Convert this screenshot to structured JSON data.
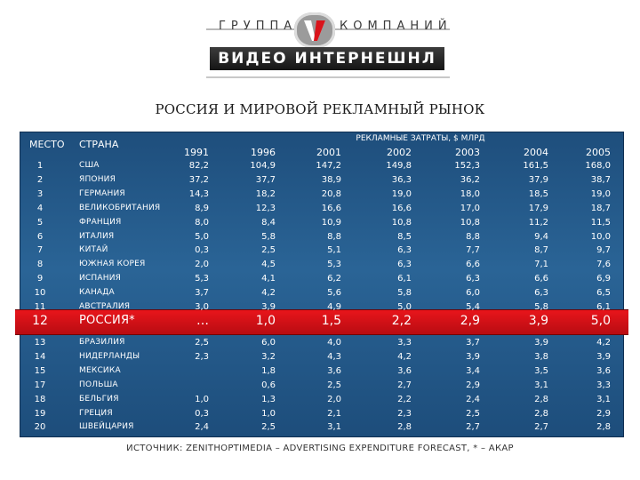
{
  "logo": {
    "left_text": "ГРУППА",
    "right_text": "КОМПАНИЙ",
    "bar_text": "ВИДЕО ИНТЕРНЕШНЛ"
  },
  "title": "РОССИЯ И МИРОВОЙ РЕКЛАМНЫЙ РЫНОК",
  "table": {
    "header_place": "МЕСТО",
    "header_country": "СТРАНА",
    "header_spend": "РЕКЛАМНЫЕ ЗАТРАТЫ, $ МЛРД",
    "years": [
      "1991",
      "1996",
      "2001",
      "2002",
      "2003",
      "2004",
      "2005"
    ],
    "rows_top": [
      {
        "place": "1",
        "country": "США",
        "values": [
          "82,2",
          "104,9",
          "147,2",
          "149,8",
          "152,3",
          "161,5",
          "168,0"
        ]
      },
      {
        "place": "2",
        "country": "ЯПОНИЯ",
        "values": [
          "37,2",
          "37,7",
          "38,9",
          "36,3",
          "36,2",
          "37,9",
          "38,7"
        ]
      },
      {
        "place": "3",
        "country": "ГЕРМАНИЯ",
        "values": [
          "14,3",
          "18,2",
          "20,8",
          "19,0",
          "18,0",
          "18,5",
          "19,0"
        ]
      },
      {
        "place": "4",
        "country": "ВЕЛИКОБРИТАНИЯ",
        "values": [
          "8,9",
          "12,3",
          "16,6",
          "16,6",
          "17,0",
          "17,9",
          "18,7"
        ]
      },
      {
        "place": "5",
        "country": "ФРАНЦИЯ",
        "values": [
          "8,0",
          "8,4",
          "10,9",
          "10,8",
          "10,8",
          "11,2",
          "11,5"
        ]
      },
      {
        "place": "6",
        "country": "ИТАЛИЯ",
        "values": [
          "5,0",
          "5,8",
          "8,8",
          "8,5",
          "8,8",
          "9,4",
          "10,0"
        ]
      },
      {
        "place": "7",
        "country": "КИТАЙ",
        "values": [
          "0,3",
          "2,5",
          "5,1",
          "6,3",
          "7,7",
          "8,7",
          "9,7"
        ]
      },
      {
        "place": "8",
        "country": "ЮЖНАЯ КОРЕЯ",
        "values": [
          "2,0",
          "4,5",
          "5,3",
          "6,3",
          "6,6",
          "7,1",
          "7,6"
        ]
      },
      {
        "place": "9",
        "country": "ИСПАНИЯ",
        "values": [
          "5,3",
          "4,1",
          "6,2",
          "6,1",
          "6,3",
          "6,6",
          "6,9"
        ]
      },
      {
        "place": "10",
        "country": "КАНАДА",
        "values": [
          "3,7",
          "4,2",
          "5,6",
          "5,8",
          "6,0",
          "6,3",
          "6,5"
        ]
      },
      {
        "place": "11",
        "country": "АВСТРАЛИЯ",
        "values": [
          "3,0",
          "3,9",
          "4,9",
          "5,0",
          "5,4",
          "5,8",
          "6,1"
        ]
      }
    ],
    "russia_row": {
      "place": "12",
      "country": "РОССИЯ*",
      "values": [
        "…",
        "1,0",
        "1,5",
        "2,2",
        "2,9",
        "3,9",
        "5,0"
      ]
    },
    "rows_bottom": [
      {
        "place": "13",
        "country": "БРАЗИЛИЯ",
        "values": [
          "2,5",
          "6,0",
          "4,0",
          "3,3",
          "3,7",
          "3,9",
          "4,2"
        ]
      },
      {
        "place": "14",
        "country": "НИДЕРЛАНДЫ",
        "values": [
          "2,3",
          "3,2",
          "4,3",
          "4,2",
          "3,9",
          "3,8",
          "3,9"
        ]
      },
      {
        "place": "15",
        "country": "МЕКСИКА",
        "values": [
          "",
          "1,8",
          "3,6",
          "3,6",
          "3,4",
          "3,5",
          "3,6"
        ]
      },
      {
        "place": "17",
        "country": "ПОЛЬША",
        "values": [
          "",
          "0,6",
          "2,5",
          "2,7",
          "2,9",
          "3,1",
          "3,3"
        ]
      },
      {
        "place": "18",
        "country": "БЕЛЬГИЯ",
        "values": [
          "1,0",
          "1,3",
          "2,0",
          "2,2",
          "2,4",
          "2,8",
          "3,1"
        ]
      },
      {
        "place": "19",
        "country": "ГРЕЦИЯ",
        "values": [
          "0,3",
          "1,0",
          "2,1",
          "2,3",
          "2,5",
          "2,8",
          "2,9"
        ]
      },
      {
        "place": "20",
        "country": "ШВЕЙЦАРИЯ",
        "values": [
          "2,4",
          "2,5",
          "3,1",
          "2,8",
          "2,7",
          "2,7",
          "2,8"
        ]
      }
    ]
  },
  "source": "ИСТОЧНИК:  ZENITHOPTIMEDIA – ADVERTISING EXPENDITURE FORECAST,   * – АКАР",
  "colors": {
    "panel": "#2a6496",
    "highlight": "#d81117"
  }
}
